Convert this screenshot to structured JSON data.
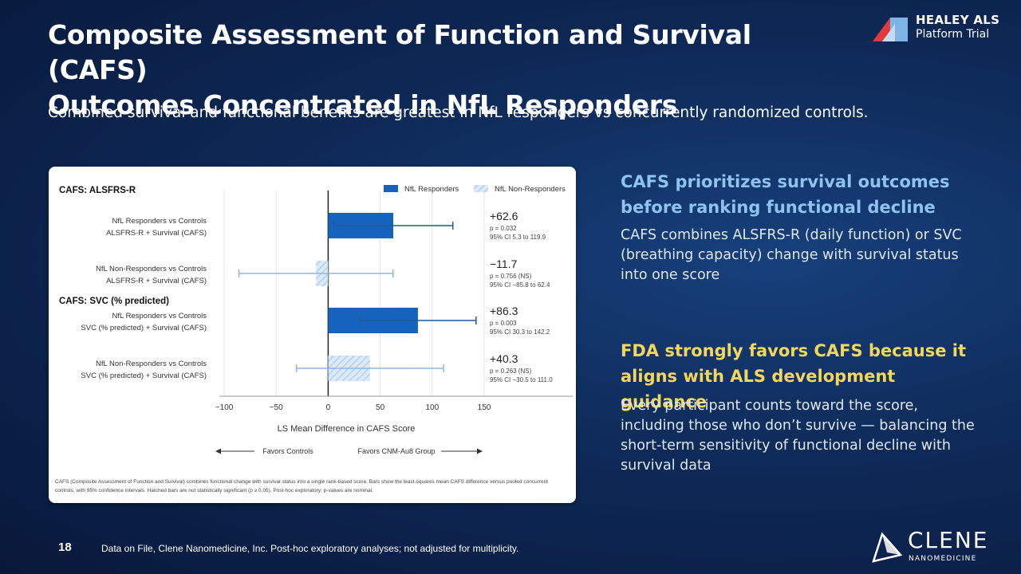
{
  "slide": {
    "title_line1": "Composite Assessment of Function and Survival (CAFS)",
    "title_line2": "Outcomes Concentrated in NfL Responders",
    "subtitle": "Combined survival and functional benefits are greatest in NfL responders vs concurrently randomized controls.",
    "page_number": "18",
    "source": "Data on File, Clene Nanomedicine, Inc. Post-hoc exploratory analyses; not adjusted for multiplicity."
  },
  "logos": {
    "healey_line1": "HEALEY ALS",
    "healey_line2": "Platform Trial",
    "clene_line1": "CLENE",
    "clene_line2": "NANOMEDICINE"
  },
  "colors": {
    "responder_bar": "#1663be",
    "nonresponder_bar": "#d6e7f7",
    "heading_blue": "#8ec3f0",
    "heading_yellow": "#f3d65a"
  },
  "chart_data": {
    "type": "bar",
    "orientation": "horizontal",
    "legend": [
      "NfL Responders",
      "NfL Non-Responders"
    ],
    "legend_position": "top-right",
    "section_labels": [
      {
        "label": "CAFS: ALSFRS-R",
        "before_row": 0
      },
      {
        "label": "CAFS: SVC (% predicted)",
        "before_row": 2
      }
    ],
    "rows": [
      {
        "label1": "NfL Responders vs Controls",
        "label2": "ALSFRS-R + Survival (CAFS)",
        "group": "NfL Responders",
        "value": 62.6,
        "ci": [
          5.3,
          119.9
        ],
        "value_text": "+62.6",
        "p_text": "p = 0.032",
        "ci_text": "95% CI 5.3 to 119.9",
        "hatched": false
      },
      {
        "label1": "NfL Non-Responders vs Controls",
        "label2": "ALSFRS-R + Survival (CAFS)",
        "group": "NfL Non-Responders",
        "value": -11.7,
        "ci": [
          -85.8,
          62.4
        ],
        "value_text": "−11.7",
        "p_text": "p = 0.756 (NS)",
        "ci_text": "95% CI −85.8 to 62.4",
        "hatched": true
      },
      {
        "label1": "NfL Responders vs Controls",
        "label2": "SVC (% predicted) + Survival (CAFS)",
        "group": "NfL Responders",
        "value": 86.3,
        "ci": [
          30.3,
          142.2
        ],
        "value_text": "+86.3",
        "p_text": "p = 0.003",
        "ci_text": "95% CI 30.3 to 142.2",
        "hatched": false
      },
      {
        "label1": "NfL Non-Responders vs Controls",
        "label2": "SVC (% predicted) + Survival (CAFS)",
        "group": "NfL Non-Responders",
        "value": 40.3,
        "ci": [
          -30.5,
          111.0
        ],
        "value_text": "+40.3",
        "p_text": "p = 0.263 (NS)",
        "ci_text": "95% CI −30.5 to 111.0",
        "hatched": true
      }
    ],
    "xlim": [
      -100,
      150
    ],
    "xticks": [
      -100,
      -50,
      0,
      50,
      100,
      150
    ],
    "xtick_labels": [
      "−100",
      "−50",
      "0",
      "50",
      "100",
      "150"
    ],
    "xlabel": "LS Mean Difference in CAFS Score",
    "grid": true,
    "favors_left": "Favors Controls",
    "favors_right": "Favors CNM-Au8 Group",
    "footnote": "CAFS (Composite Assessment of Function and Survival) combines functional change with survival status into a single rank-based score. Bars show the least-squares mean CAFS difference versus pooled concurrent controls, with 95% confidence intervals. Hatched bars are not statistically significant (p ≥ 0.05). Post-hoc exploratory; p-values are nominal."
  },
  "right_panel": {
    "heading1": "CAFS prioritizes survival outcomes before ranking functional decline",
    "body1": "CAFS combines ALSFRS-R (daily function) or SVC (breathing capacity) change with survival status into one score",
    "heading2": "FDA strongly favors CAFS because it aligns with ALS development guidance",
    "body2": "Every participant counts toward the score, including those who don’t survive — balancing the short-term sensitivity of functional decline with survival data"
  }
}
